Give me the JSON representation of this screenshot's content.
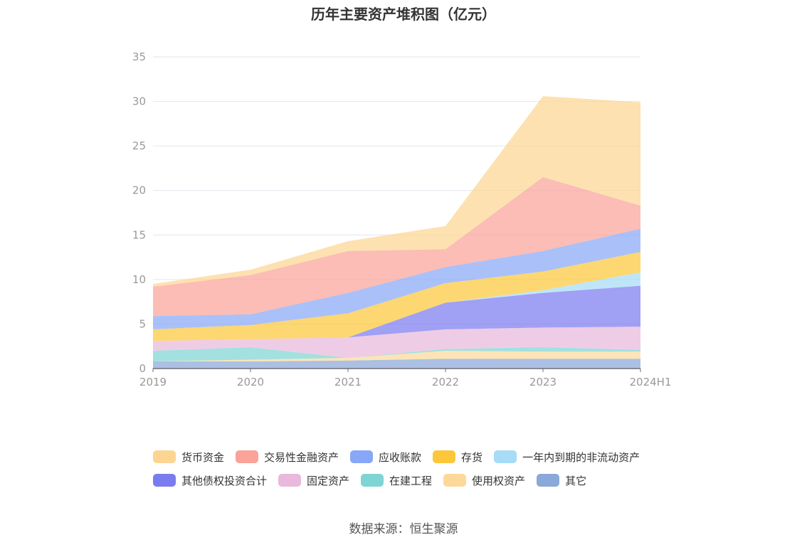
{
  "chart_data": {
    "type": "area",
    "stacked": true,
    "title": "历年主要资产堆积图（亿元）",
    "x": [
      "2019",
      "2020",
      "2021",
      "2022",
      "2023",
      "2024H1"
    ],
    "y_ticks": [
      "0",
      "5",
      "10",
      "15",
      "20",
      "25",
      "30",
      "35"
    ],
    "ylim": [
      0,
      35
    ],
    "grid": true,
    "legend_position": "bottom",
    "series": [
      {
        "name": "其它",
        "color": "#8aa8d8",
        "values": [
          0.8,
          0.8,
          0.9,
          1.1,
          1.1,
          1.1
        ]
      },
      {
        "name": "使用权资产",
        "color": "#fcd99a",
        "values": [
          0.0,
          0.2,
          0.3,
          0.9,
          0.8,
          0.8
        ]
      },
      {
        "name": "在建工程",
        "color": "#7fd4d4",
        "values": [
          1.2,
          1.4,
          0.0,
          0.2,
          0.5,
          0.2
        ]
      },
      {
        "name": "固定资产",
        "color": "#e9b8db",
        "values": [
          1.1,
          0.9,
          2.3,
          2.2,
          2.2,
          2.6
        ]
      },
      {
        "name": "其他债权投资合计",
        "color": "#7b7bf0",
        "values": [
          0.0,
          0.0,
          0.0,
          3.0,
          3.9,
          4.6
        ]
      },
      {
        "name": "一年内到期的非流动资产",
        "color": "#a6dcf5",
        "values": [
          0.0,
          0.0,
          0.0,
          0.0,
          0.3,
          1.5
        ]
      },
      {
        "name": "存货",
        "color": "#fcc73a",
        "values": [
          1.3,
          1.6,
          2.7,
          2.2,
          2.1,
          2.3
        ]
      },
      {
        "name": "应收账款",
        "color": "#89a7f7",
        "values": [
          1.5,
          1.2,
          2.3,
          1.8,
          2.3,
          2.6
        ]
      },
      {
        "name": "交易性金融资产",
        "color": "#f9a399",
        "values": [
          3.3,
          4.4,
          4.7,
          2.0,
          8.3,
          2.6
        ]
      },
      {
        "name": "货币资金",
        "color": "#fdd592",
        "values": [
          0.3,
          0.6,
          1.1,
          2.6,
          9.1,
          11.6
        ]
      }
    ],
    "legend_order": [
      "货币资金",
      "交易性金融资产",
      "应收账款",
      "存货",
      "一年内到期的非流动资产",
      "其他债权投资合计",
      "固定资产",
      "在建工程",
      "使用权资产",
      "其它"
    ]
  },
  "source_text": "数据来源：恒生聚源"
}
